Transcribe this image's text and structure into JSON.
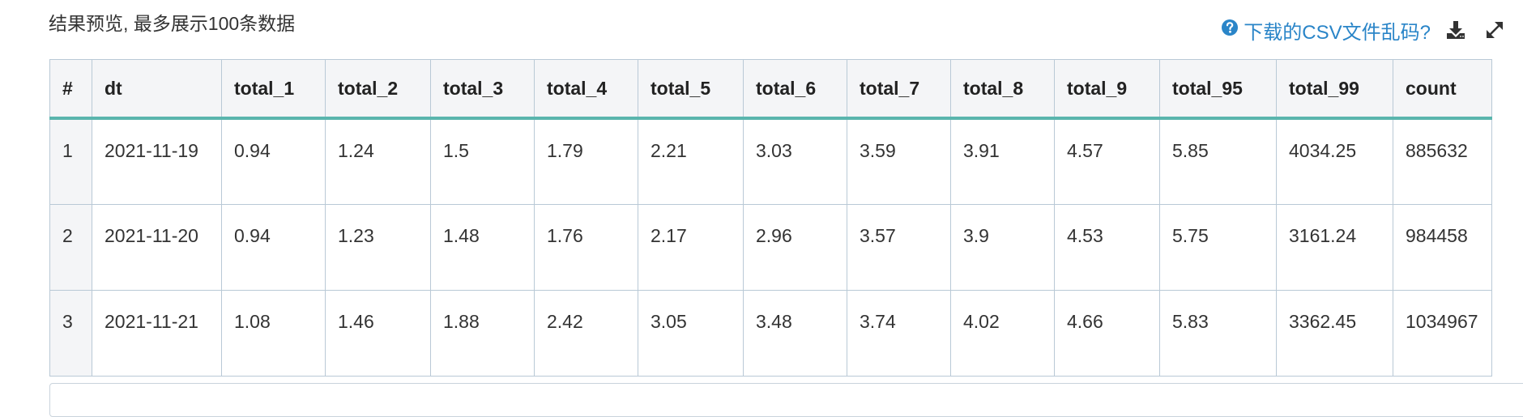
{
  "preview": {
    "title": "结果预览, 最多展示100条数据"
  },
  "toolbar": {
    "csv_help_label": "下载的CSV文件乱码?",
    "accent_color": "#2a85c8"
  },
  "table": {
    "columns": [
      "#",
      "dt",
      "total_1",
      "total_2",
      "total_3",
      "total_4",
      "total_5",
      "total_6",
      "total_7",
      "total_8",
      "total_9",
      "total_95",
      "total_99",
      "count"
    ],
    "rows": [
      [
        "1",
        "2021-11-19",
        "0.94",
        "1.24",
        "1.5",
        "1.79",
        "2.21",
        "3.03",
        "3.59",
        "3.91",
        "4.57",
        "5.85",
        "4034.25",
        "885632"
      ],
      [
        "2",
        "2021-11-20",
        "0.94",
        "1.23",
        "1.48",
        "1.76",
        "2.17",
        "2.96",
        "3.57",
        "3.9",
        "4.53",
        "5.75",
        "3161.24",
        "984458"
      ],
      [
        "3",
        "2021-11-21",
        "1.08",
        "1.46",
        "1.88",
        "2.42",
        "3.05",
        "3.48",
        "3.74",
        "4.02",
        "4.66",
        "5.83",
        "3362.45",
        "1034967"
      ]
    ]
  },
  "icons": {
    "help": "question-circle-icon",
    "download": "download-icon",
    "expand": "expand-icon"
  }
}
